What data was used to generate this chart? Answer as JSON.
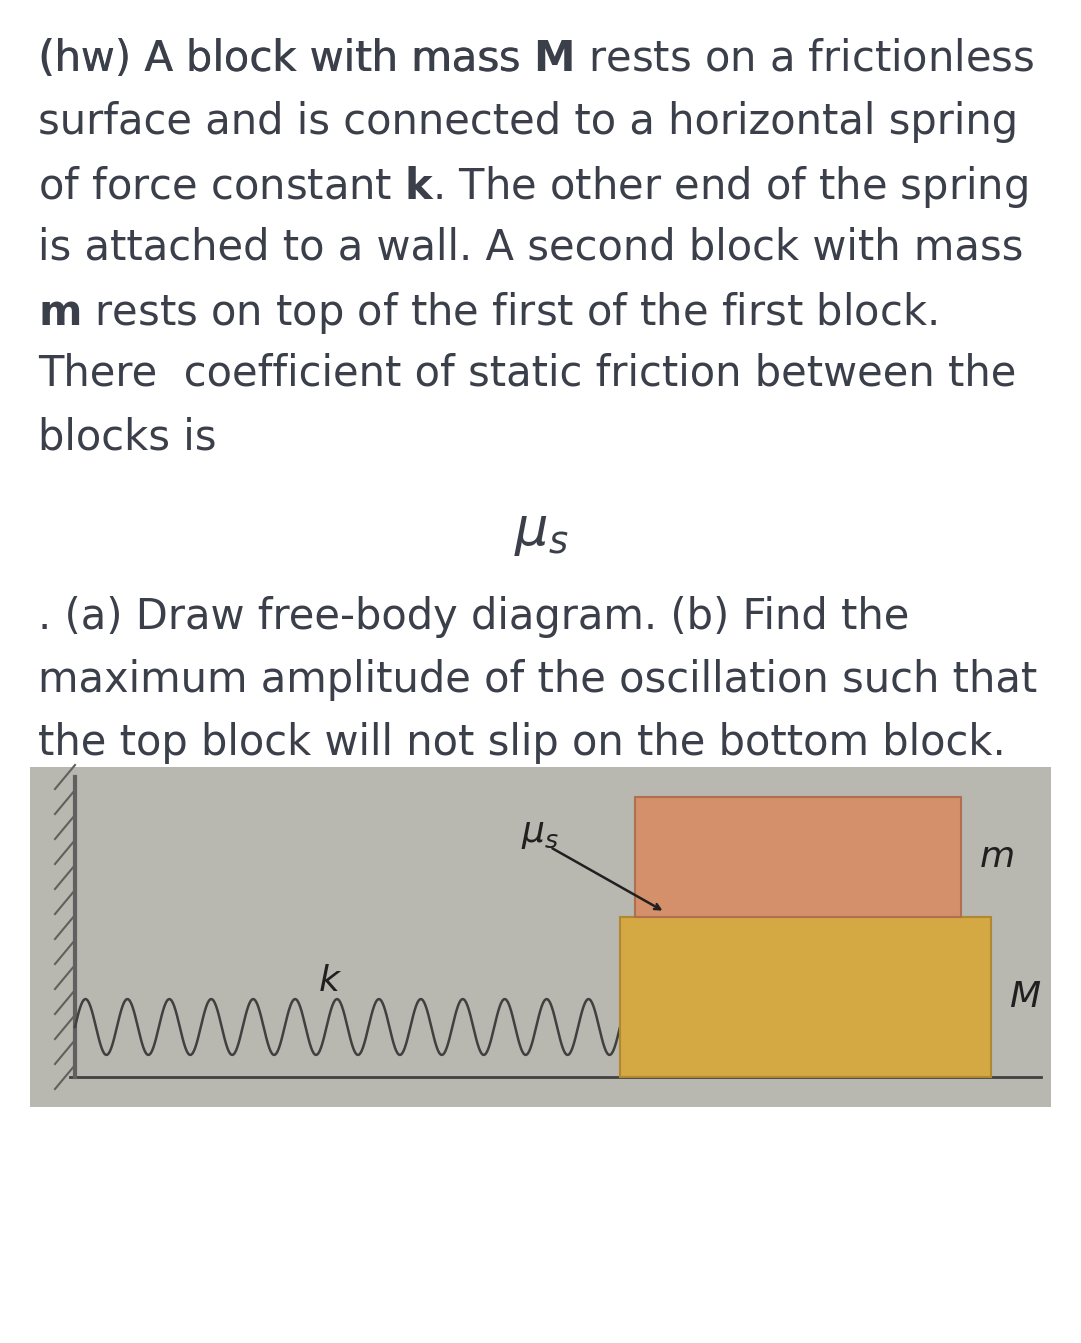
{
  "bg_color": "#ffffff",
  "text_color": "#3a3f4a",
  "line1": "(hw) A block with mass ",
  "line1_bold": "M",
  "line1_rest": " rests on a frictionless",
  "line2": "surface and is connected to a horizontal spring",
  "line3_pre": "of force constant ",
  "line3_bold": "k",
  "line3_rest": ". The other end of the spring",
  "line4": "is attached to a wall. A second block with mass",
  "line5_bold": "m",
  "line5_rest": " rests on top of the first of the first block.",
  "line6": "There  coefficient of static friction between the",
  "line7": "blocks is",
  "mu_symbol": "$\\mu_s$",
  "para2_line1": ". (a) Draw free-body diagram. (b) Find the",
  "para2_line2": "maximum amplitude of the oscillation such that",
  "para2_line3": "the top block will not slip on the bottom block.",
  "diagram": {
    "bg_color": "#b8b8b0",
    "wall_color": "#808080",
    "floor_color": "#404040",
    "spring_color": "#404040",
    "block_M_color": "#d4a843",
    "block_M_edge": "#b08830",
    "block_m_color": "#d4906a",
    "block_m_edge": "#b07050",
    "label_k": "$k$",
    "label_mu": "$\\mu_s$",
    "label_m": "$m$",
    "label_M": "$M$",
    "label_color": "#202020"
  }
}
